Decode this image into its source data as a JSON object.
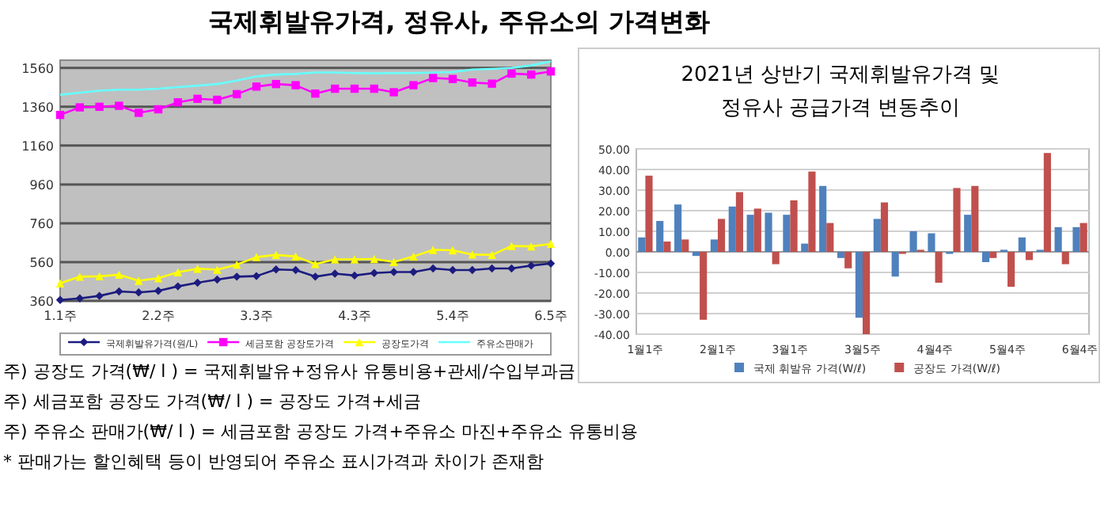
{
  "chart_data": [
    {
      "type": "line",
      "title": "국제휘발유가격, 정유사, 주유소의 가격변화",
      "categories": [
        "1.1주",
        null,
        null,
        null,
        null,
        "2.2주",
        null,
        null,
        null,
        null,
        "3.3주",
        null,
        null,
        null,
        null,
        "4.3주",
        null,
        null,
        null,
        null,
        "5.4주",
        null,
        null,
        null,
        null,
        "6.5주"
      ],
      "series": [
        {
          "name": "국제휘발유가격(원/L)",
          "color": "#1c1c80",
          "marker": "diamond",
          "values": [
            365,
            373,
            386,
            409,
            404,
            412,
            435,
            454,
            470,
            485,
            488,
            522,
            519,
            485,
            501,
            491,
            504,
            509,
            509,
            527,
            519,
            519,
            527,
            527,
            542,
            553
          ]
        },
        {
          "name": "세금포함 공장도가격",
          "color": "#ff00ff",
          "marker": "square",
          "values": [
            1318,
            1357,
            1360,
            1365,
            1329,
            1347,
            1383,
            1401,
            1396,
            1425,
            1464,
            1477,
            1471,
            1428,
            1453,
            1453,
            1453,
            1435,
            1471,
            1508,
            1503,
            1485,
            1479,
            1531,
            1526,
            1542
          ]
        },
        {
          "name": "공장도가격",
          "color": "#ffff00",
          "marker": "triangle",
          "values": [
            451,
            485,
            487,
            495,
            464,
            477,
            508,
            526,
            521,
            547,
            586,
            597,
            589,
            550,
            574,
            574,
            576,
            561,
            589,
            623,
            621,
            599,
            597,
            643,
            641,
            654
          ]
        },
        {
          "name": "주유소판매가",
          "color": "#66ffff",
          "marker": "none",
          "values": [
            1422,
            1433,
            1443,
            1448,
            1448,
            1453,
            1461,
            1469,
            1477,
            1495,
            1516,
            1526,
            1529,
            1537,
            1537,
            1534,
            1532,
            1534,
            1534,
            1537,
            1539,
            1552,
            1555,
            1560,
            1573,
            1594
          ]
        }
      ],
      "ylim": [
        360,
        1600
      ],
      "yticks": [
        360,
        560,
        760,
        960,
        1160,
        1360,
        1560
      ],
      "grid": "y",
      "legend": "bottom",
      "annotations": [
        "주) 공장도 가격(₩/ l ) = 국제휘발유+정유사 유통비용+관세/수입부과금",
        "주) 세금포함 공장도 가격(₩/ l ) = 공장도 가격+세금",
        "주) 주유소 판매가(₩/ l ) = 세금포함 공장도 가격+주유소 마진+주유소 유통비용",
        "* 판매가는 할인혜택 등이 반영되어 주유소 표시가격과 차이가 존재함"
      ]
    },
    {
      "type": "bar",
      "title": "2021년 상반기 국제휘발유가격 및 정유사 공급가격 변동추이",
      "categories": [
        "1월1주",
        null,
        null,
        null,
        "2월1주",
        null,
        null,
        null,
        "3월1주",
        null,
        null,
        null,
        "3월5주",
        null,
        null,
        null,
        "4월4주",
        null,
        null,
        null,
        "5월4주",
        null,
        null,
        null,
        "6월4주"
      ],
      "series": [
        {
          "name": "국제 휘발유 가격(W/ℓ)",
          "color": "#4f81bd",
          "values": [
            7,
            15,
            23,
            -2,
            6,
            22,
            18,
            19,
            18,
            4,
            32,
            -3,
            -32,
            16,
            -12,
            10,
            9,
            -1,
            18,
            -5,
            1,
            7,
            1,
            12,
            12
          ]
        },
        {
          "name": "공장도 가격(W/ℓ)",
          "color": "#c0504d",
          "values": [
            37,
            5,
            6,
            -33,
            16,
            29,
            21,
            -6,
            25,
            39,
            14,
            -8,
            -40,
            24,
            -1,
            1,
            -15,
            31,
            32,
            -3,
            -17,
            -4,
            48,
            -6,
            14
          ]
        }
      ],
      "ylim": [
        -40,
        50
      ],
      "yticks": [
        {
          "value": -40,
          "label": "-40.00"
        },
        {
          "value": -30,
          "label": "-30.00"
        },
        {
          "value": -20,
          "label": "-20.00"
        },
        {
          "value": -10,
          "label": "-10.00"
        },
        {
          "value": 0,
          "label": "0.00"
        },
        {
          "value": 10,
          "label": "10.00"
        },
        {
          "value": 20,
          "label": "20.00"
        },
        {
          "value": 30,
          "label": "30.00"
        },
        {
          "value": 40,
          "label": "40.00"
        },
        {
          "value": 50,
          "label": "50.00"
        }
      ],
      "grid": "y",
      "legend": "bottom"
    }
  ]
}
